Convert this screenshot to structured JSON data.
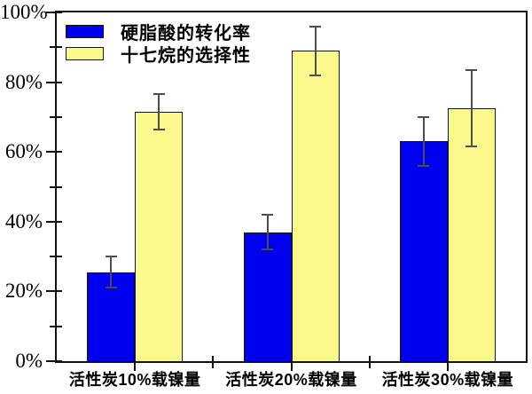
{
  "chart_data": {
    "type": "bar",
    "title": "",
    "xlabel": "",
    "ylabel": "",
    "categories": [
      "活性炭10%载镍量",
      "活性炭20%载镍量",
      "活性炭30%载镍量"
    ],
    "series": [
      {
        "name": "硬脂酸的转化率",
        "color": "#0000ee",
        "values": [
          25.5,
          37,
          63
        ],
        "errors": [
          4.5,
          5,
          7
        ]
      },
      {
        "name": "十七烷的选择性",
        "color": "#fafa8c",
        "values": [
          71.5,
          89,
          72.5
        ],
        "errors": [
          5,
          7,
          11
        ]
      }
    ],
    "ylim": [
      0,
      100
    ],
    "y_major_step": 20,
    "y_minor_step": 10,
    "y_tick_labels": [
      "0%",
      "20%",
      "40%",
      "60%",
      "80%",
      "100%"
    ],
    "grid": false,
    "legend_position": "top-left",
    "axis_color": "#111111",
    "bar_border_color": "#15150a",
    "error_bar_color": "#4d4d4d",
    "background_color": "#ffffff"
  }
}
